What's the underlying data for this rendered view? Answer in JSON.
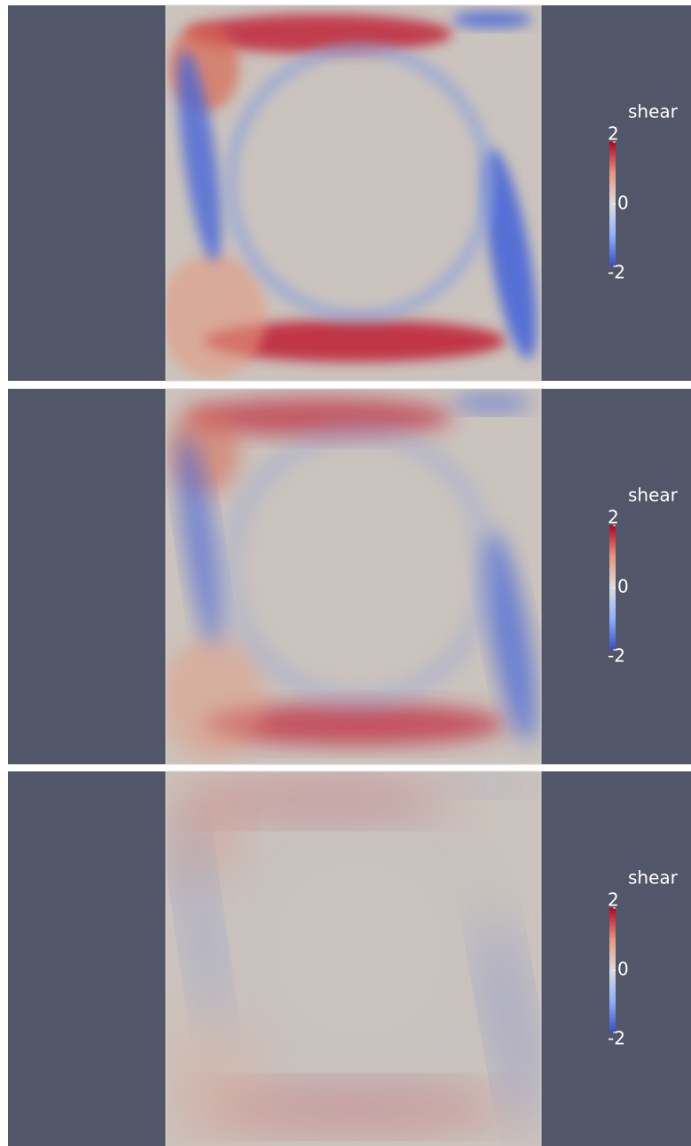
{
  "panels": [
    {
      "colorbar": {
        "title": "shear",
        "range": [
          -2,
          2
        ],
        "ticks": [
          2,
          0,
          -2
        ]
      }
    },
    {
      "colorbar": {
        "title": "shear",
        "range": [
          -2,
          2
        ],
        "ticks": [
          2,
          0,
          -2
        ]
      }
    },
    {
      "colorbar": {
        "title": "shear",
        "range": [
          -2,
          2
        ],
        "ticks": [
          2,
          0,
          -2
        ]
      }
    }
  ]
}
